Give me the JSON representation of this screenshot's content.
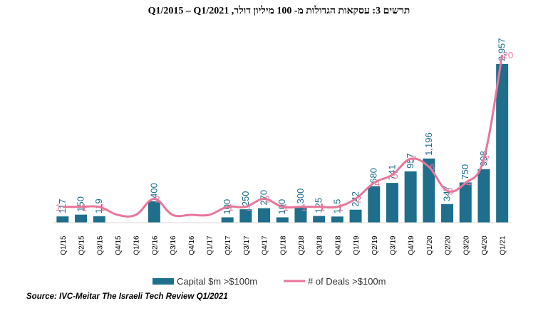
{
  "chart_data": {
    "type": "bar",
    "title": "תרשים 3: עסקאות הגדולות מ- 100 מיליון דולר, Q1/2015 – Q1/2021",
    "categories": [
      "Q1/15",
      "Q2/15",
      "Q3/15",
      "Q4/15",
      "Q1/16",
      "Q2/16",
      "Q3/16",
      "Q4/16",
      "Q1/17",
      "Q2/17",
      "Q3/17",
      "Q4/17",
      "Q1/18",
      "Q2/18",
      "Q3/18",
      "Q4/18",
      "Q1/19",
      "Q2/19",
      "Q3/19",
      "Q4/19",
      "Q1/20",
      "Q2/20",
      "Q3/20",
      "Q4/20",
      "Q1/21"
    ],
    "series": [
      {
        "name": "Capital $m >$100m",
        "type": "bar",
        "color": "#1f6e8c",
        "values": [
          117,
          150,
          119,
          0,
          0,
          400,
          0,
          0,
          0,
          100,
          250,
          270,
          100,
          300,
          125,
          115,
          242,
          680,
          741,
          957,
          1196,
          347,
          750,
          998,
          2957
        ],
        "labels": [
          "117",
          "150",
          "119",
          "",
          "",
          "400",
          "",
          "",
          "",
          "100",
          "250",
          "270",
          "100",
          "300",
          "125",
          "115",
          "242",
          "680",
          "741",
          "957",
          "1,196",
          "347",
          "750",
          "998",
          "2,957"
        ]
      },
      {
        "name": "# of Deals >$100m",
        "type": "line",
        "color": "#e8769a",
        "values": [
          1,
          1,
          1,
          0,
          0,
          2,
          0,
          0,
          0,
          1,
          1,
          2,
          1,
          1,
          1,
          1,
          2,
          4,
          5,
          7,
          6,
          3,
          4,
          7,
          20
        ],
        "labels": [
          "1",
          "1",
          "1",
          "",
          "",
          "2",
          "",
          "",
          "",
          "1",
          "1",
          "2",
          "1",
          "1",
          "1",
          "1",
          "2",
          "4",
          "5",
          "7",
          "6",
          "3",
          "4",
          "7",
          "20"
        ]
      }
    ],
    "legend_position": "bottom",
    "grid": false,
    "source": "Source: IVC-Meitar The Israeli Tech Review Q1/2021"
  }
}
